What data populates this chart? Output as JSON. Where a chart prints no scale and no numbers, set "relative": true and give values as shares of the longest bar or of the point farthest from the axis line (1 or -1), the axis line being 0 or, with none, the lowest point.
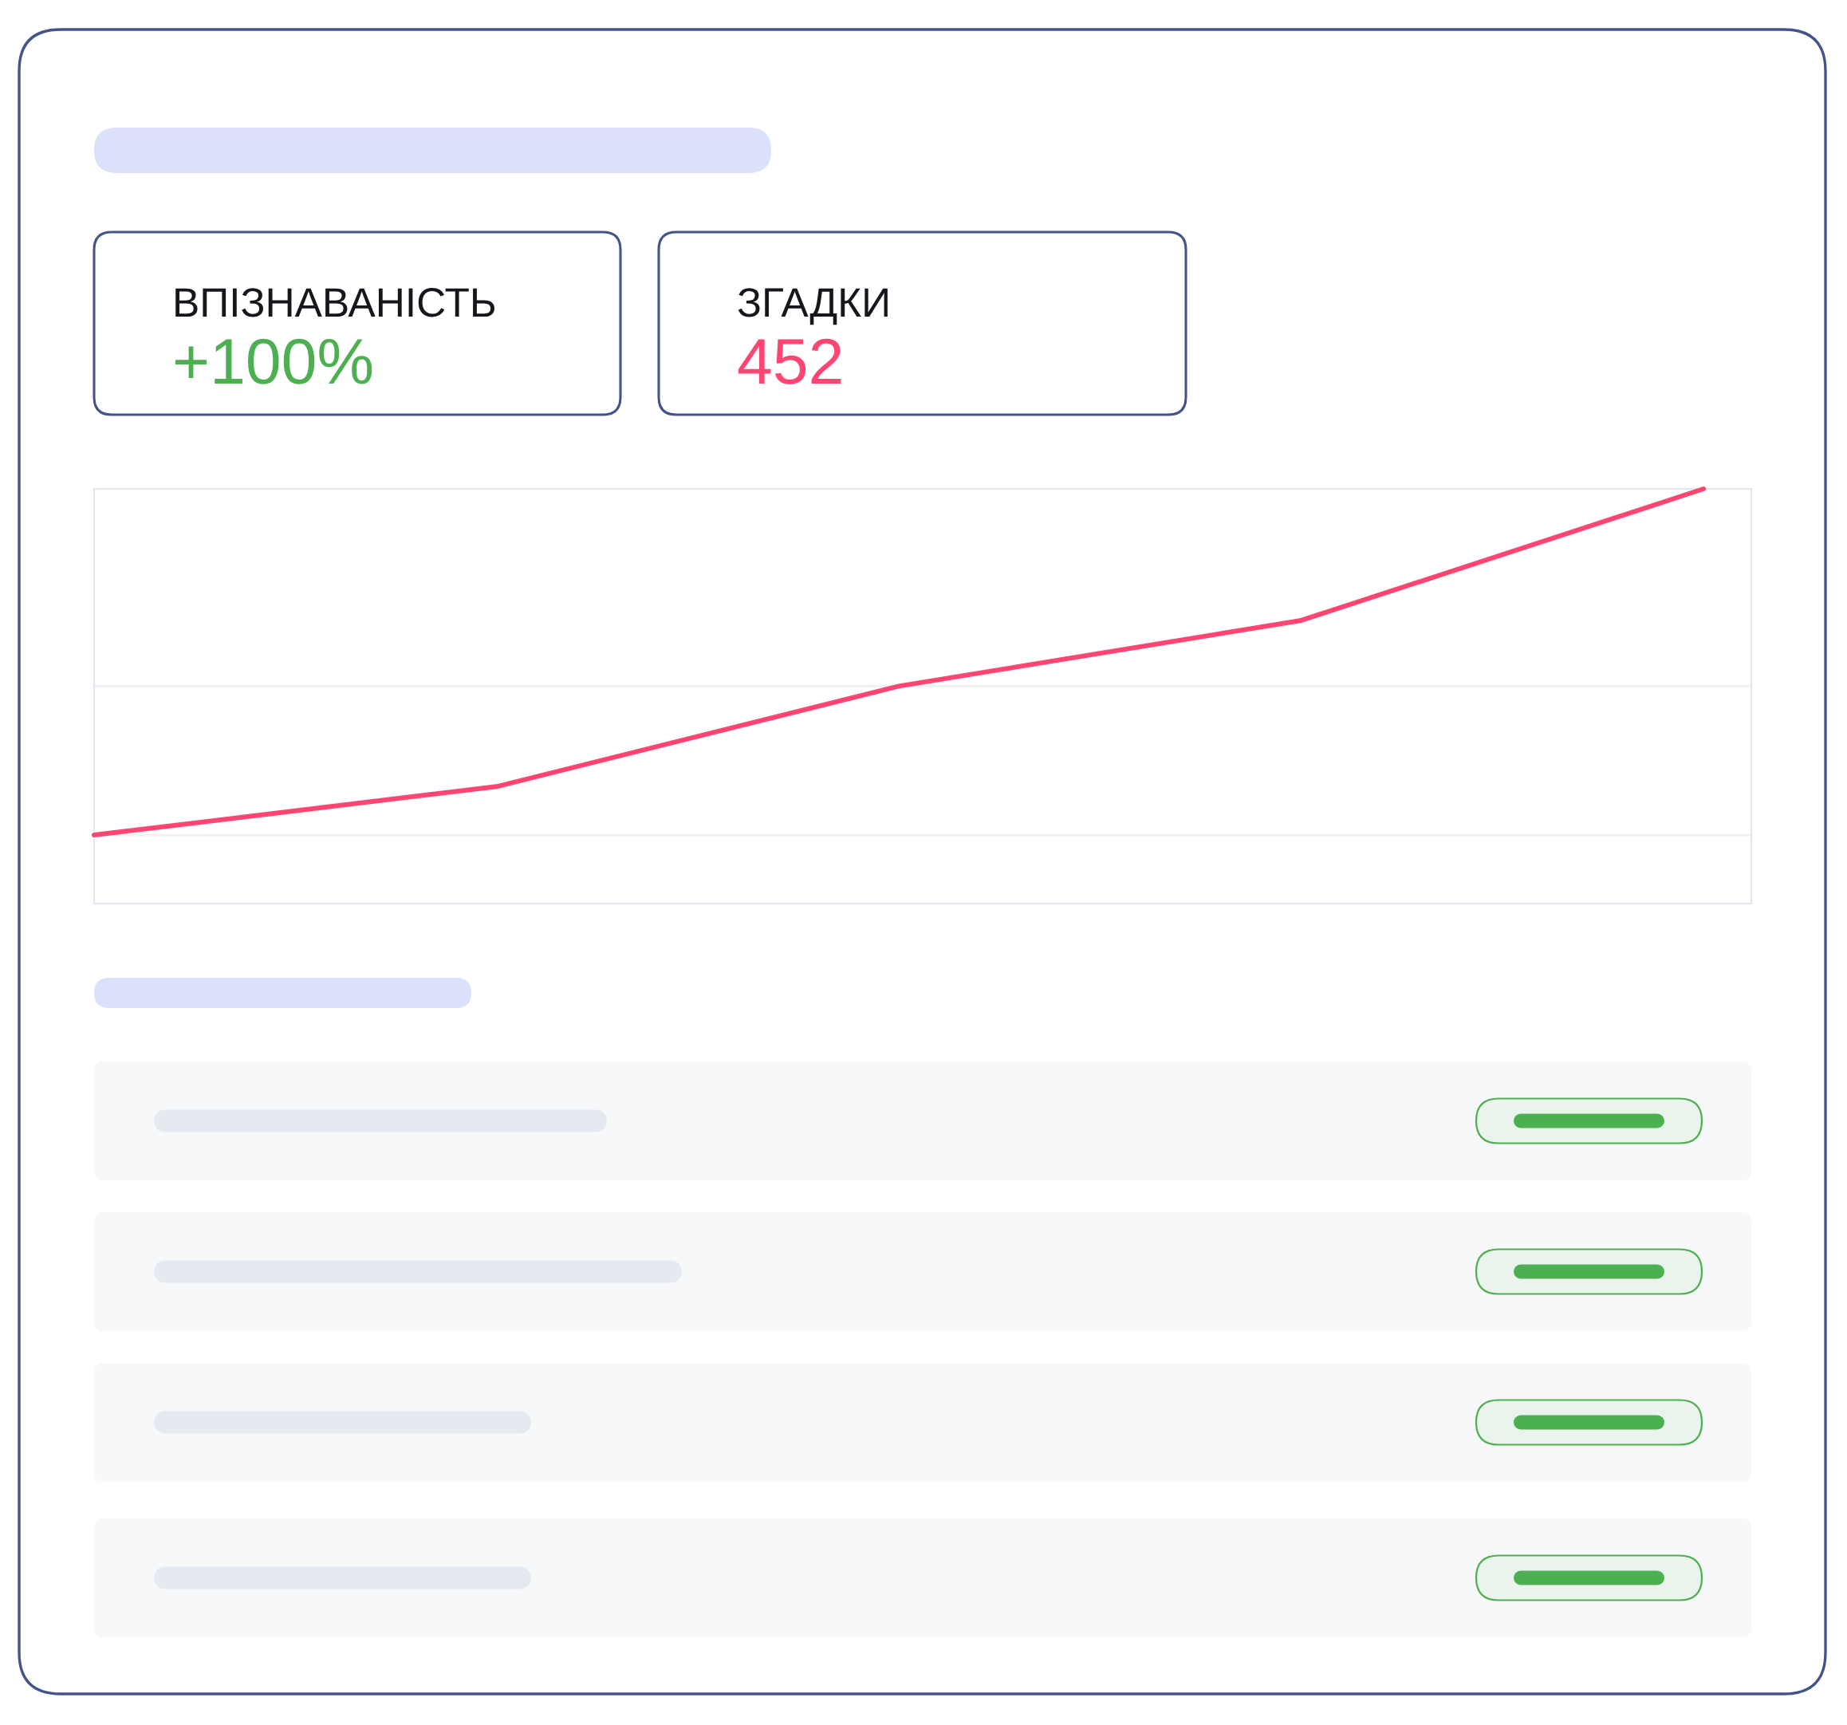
{
  "chart_data": [
    {
      "type": "other",
      "title": "ВПІЗНАВАНІСТЬ",
      "annotations": [
        "+100%"
      ],
      "color": "#4caf50"
    },
    {
      "type": "other",
      "title": "ЗГАДКИ",
      "annotations": [
        "452"
      ],
      "color": "#ff4571"
    },
    {
      "type": "line",
      "relative": true,
      "categories": [
        null,
        null,
        null,
        null,
        null
      ],
      "series": [
        {
          "color": "#ff4571",
          "values": [
            0,
            0.14,
            0.43,
            0.62,
            1
          ]
        }
      ],
      "ref_lines": [
        {
          "axis": "y",
          "value": 0,
          "color": "#eef1f6"
        },
        {
          "axis": "y",
          "value": 0.43,
          "color": "#eef1f6"
        }
      ]
    }
  ]
}
